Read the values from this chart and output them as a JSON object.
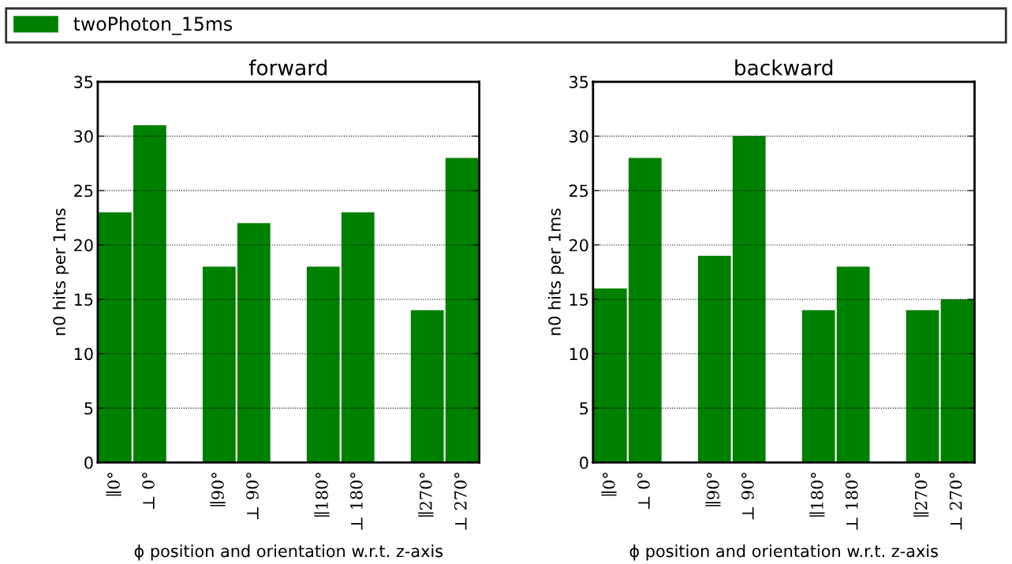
{
  "chart_data": [
    {
      "type": "bar",
      "title": "forward",
      "xlabel": "ϕ position and orientation w.r.t. z-axis",
      "ylabel": "n0 hits per 1ms",
      "categories": [
        "∥0°",
        "⊥ 0°",
        null,
        "∥90°",
        "⊥ 90°",
        null,
        "∥180°",
        "⊥ 180°",
        null,
        "∥270°",
        "⊥ 270°"
      ],
      "series": [
        {
          "name": "twoPhoton_15ms",
          "color": "#008000",
          "values": [
            23,
            31,
            null,
            18,
            22,
            null,
            18,
            23,
            null,
            14,
            28
          ]
        }
      ],
      "ylim": [
        0,
        35
      ],
      "yticks": [
        0,
        5,
        10,
        15,
        20,
        25,
        30,
        35
      ],
      "grid": "y",
      "legend": "top"
    },
    {
      "type": "bar",
      "title": "backward",
      "xlabel": "ϕ position and orientation w.r.t. z-axis",
      "ylabel": "n0 hits per 1ms",
      "categories": [
        "∥0°",
        "⊥ 0°",
        null,
        "∥90°",
        "⊥ 90°",
        null,
        "∥180°",
        "⊥ 180°",
        null,
        "∥270°",
        "⊥ 270°"
      ],
      "series": [
        {
          "color": "#008000",
          "values": [
            16,
            28,
            null,
            19,
            30,
            null,
            14,
            18,
            null,
            14,
            15
          ]
        }
      ],
      "ylim": [
        0,
        35
      ],
      "yticks": [
        0,
        5,
        10,
        15,
        20,
        25,
        30,
        35
      ],
      "grid": "y"
    }
  ]
}
